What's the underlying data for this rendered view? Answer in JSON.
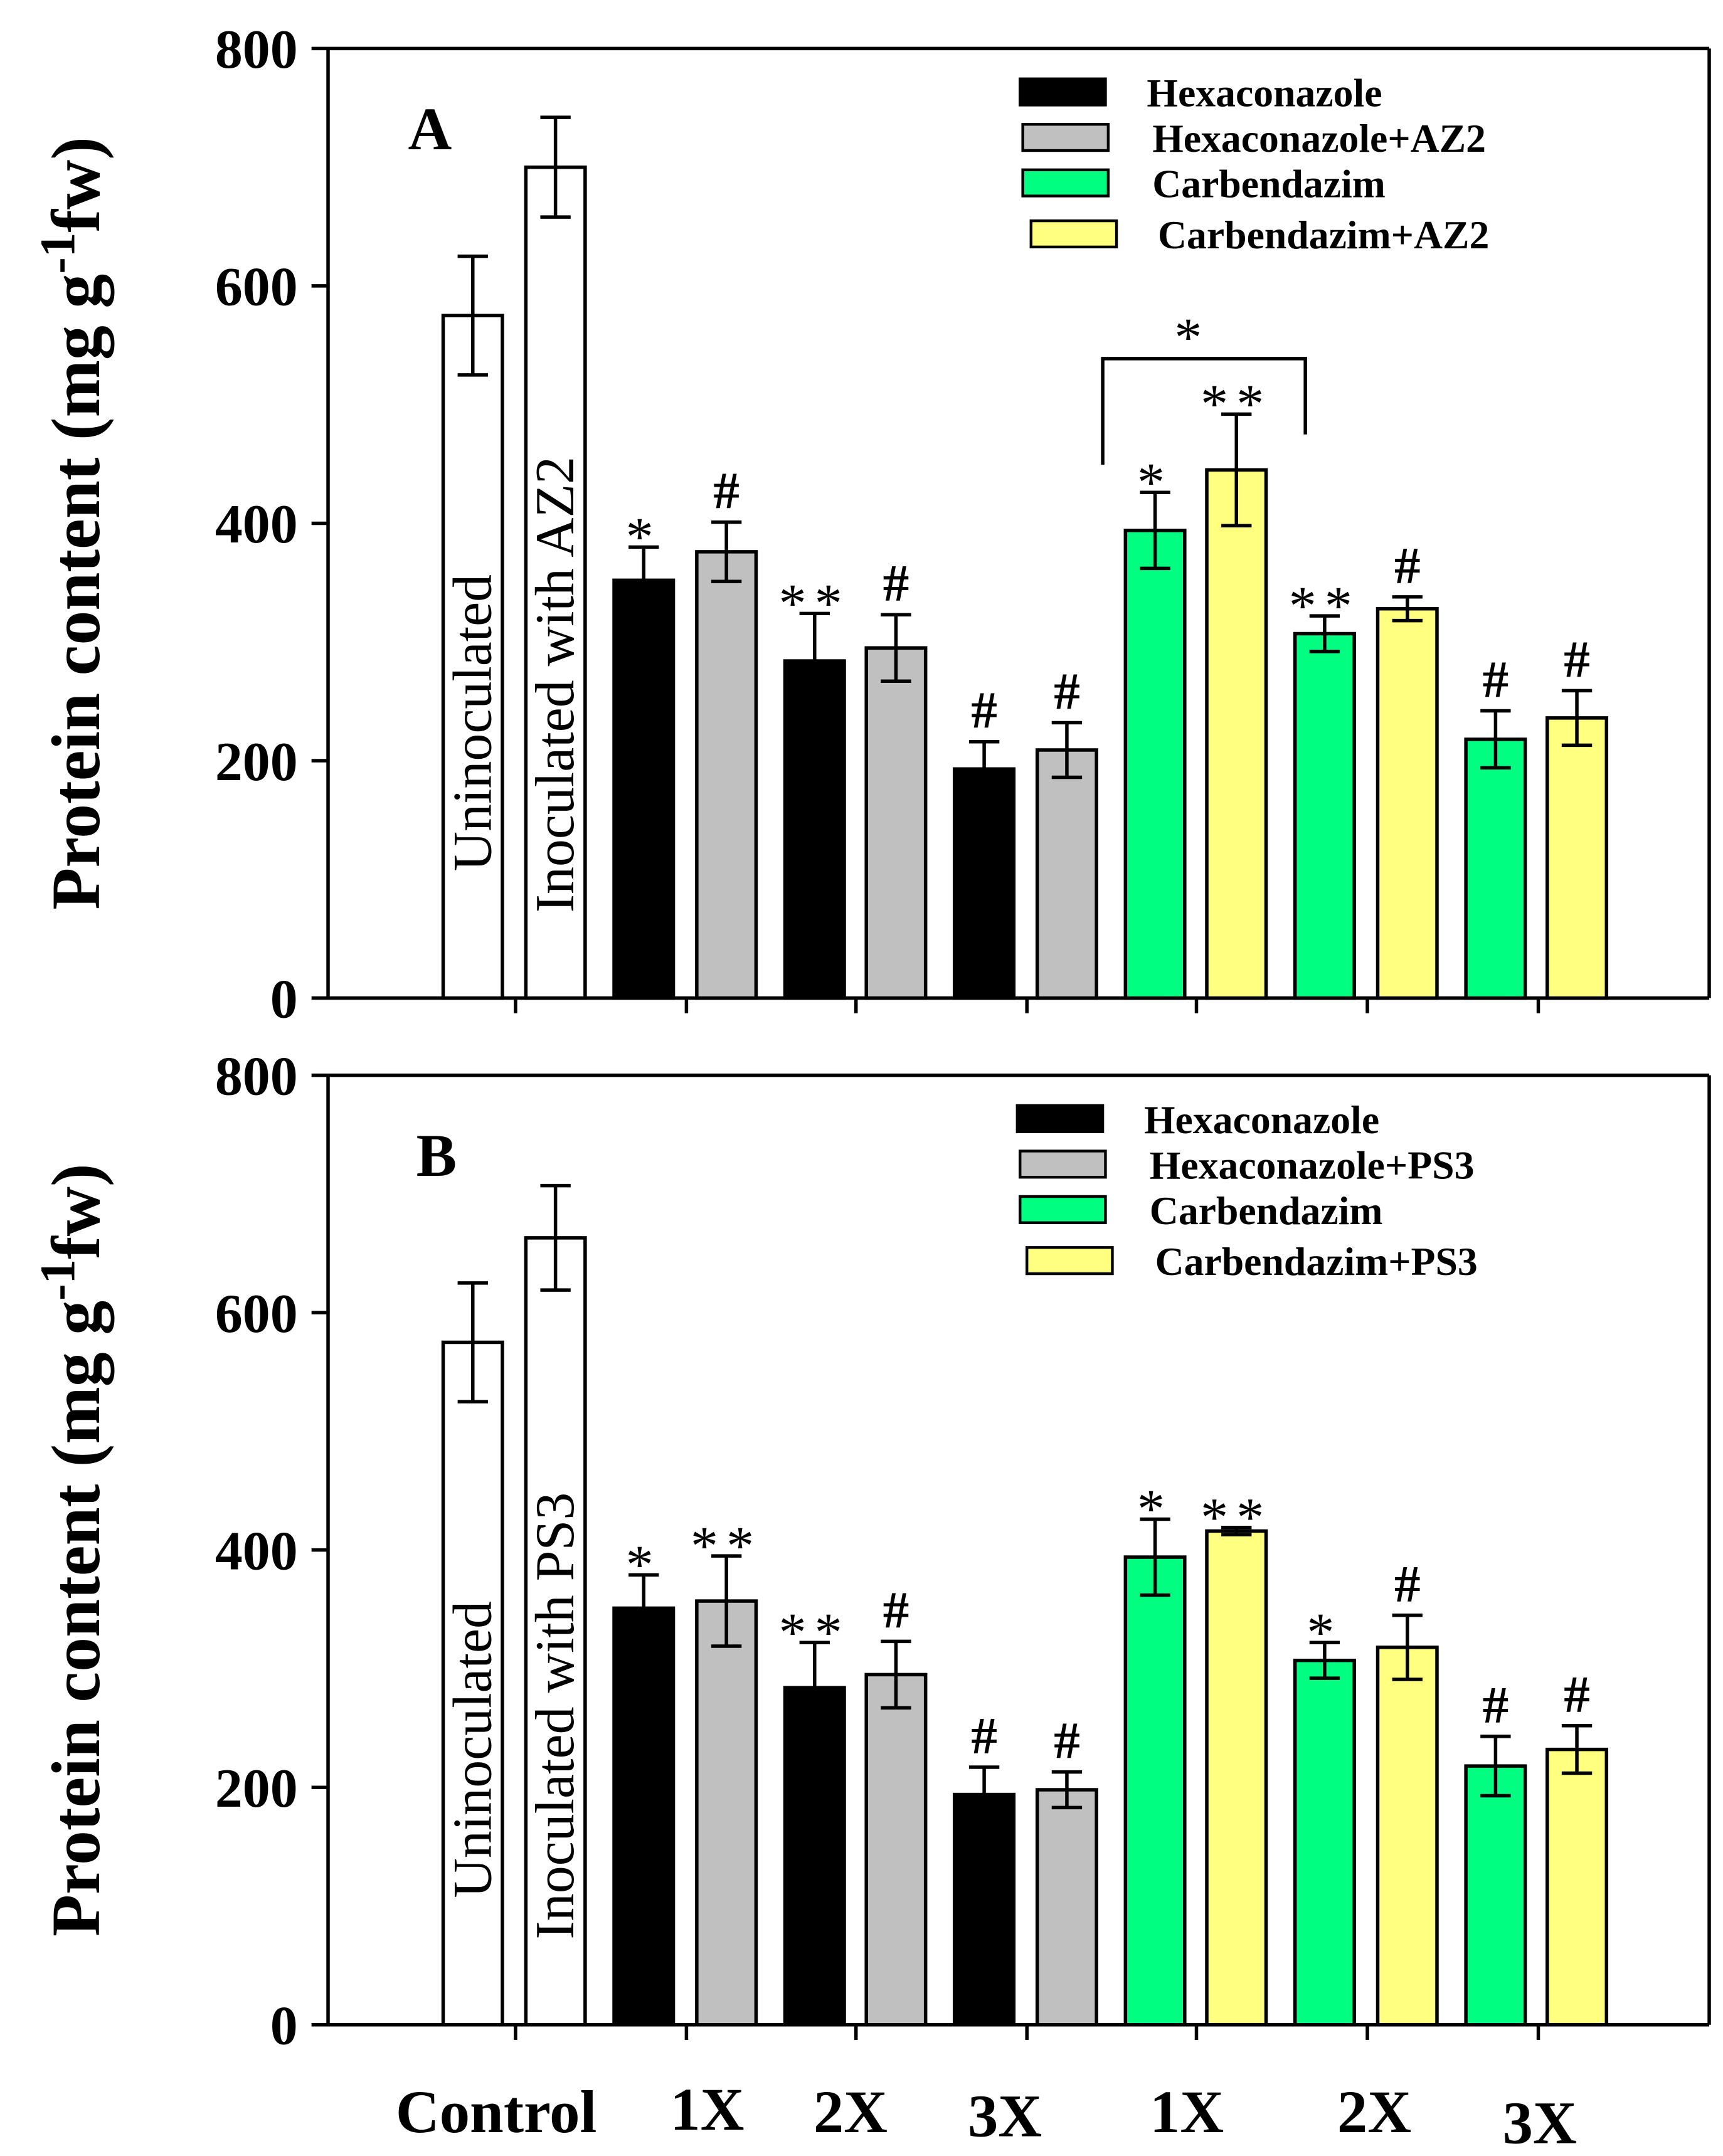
{
  "chart_data": [
    {
      "type": "bar",
      "panel_label": "A",
      "ylabel": "Protein content (mg g",
      "ylabel_sup": "-1",
      "ylabel_tail": "fw)",
      "ylim": [
        0,
        800
      ],
      "yticks": [
        "0",
        "200",
        "400",
        "600",
        "800"
      ],
      "control_labels": [
        "Uninoculated",
        "Inoculated with AZ2"
      ],
      "legend": [
        "Hexaconazole",
        "Hexaconazole+AZ2",
        "Carbendazim",
        "Carbendazim+AZ2"
      ],
      "legend_position": "top-right",
      "bracket_annotation": "*",
      "bars": [
        {
          "group": "Control",
          "series": "Uninoculated",
          "value": 575,
          "error": 50,
          "mark": ""
        },
        {
          "group": "Control",
          "series": "Inoculated with AZ2",
          "value": 700,
          "error": 42,
          "mark": ""
        },
        {
          "group": "1X",
          "series": "Hexaconazole",
          "value": 352,
          "error": 28,
          "mark": "*"
        },
        {
          "group": "1X",
          "series": "Hexaconazole+AZ2",
          "value": 376,
          "error": 25,
          "mark": "#"
        },
        {
          "group": "2X",
          "series": "Hexaconazole",
          "value": 284,
          "error": 40,
          "mark": "**"
        },
        {
          "group": "2X",
          "series": "Hexaconazole+AZ2",
          "value": 295,
          "error": 28,
          "mark": "#"
        },
        {
          "group": "3X",
          "series": "Hexaconazole",
          "value": 193,
          "error": 23,
          "mark": "#"
        },
        {
          "group": "3X",
          "series": "Hexaconazole+AZ2",
          "value": 209,
          "error": 23,
          "mark": "#"
        },
        {
          "group": "1X",
          "series": "Carbendazim",
          "value": 394,
          "error": 32,
          "mark": "*"
        },
        {
          "group": "1X",
          "series": "Carbendazim+AZ2",
          "value": 445,
          "error": 47,
          "mark": "**"
        },
        {
          "group": "2X",
          "series": "Carbendazim",
          "value": 307,
          "error": 15,
          "mark": "**"
        },
        {
          "group": "2X",
          "series": "Carbendazim+AZ2",
          "value": 328,
          "error": 10,
          "mark": "#"
        },
        {
          "group": "3X",
          "series": "Carbendazim",
          "value": 218,
          "error": 24,
          "mark": "#"
        },
        {
          "group": "3X",
          "series": "Carbendazim+AZ2",
          "value": 236,
          "error": 23,
          "mark": "#"
        }
      ]
    },
    {
      "type": "bar",
      "panel_label": "B",
      "ylabel": "Protein content (mg g",
      "ylabel_sup": "-1",
      "ylabel_tail": "fw)",
      "ylim": [
        0,
        800
      ],
      "yticks": [
        "0",
        "200",
        "400",
        "600",
        "800"
      ],
      "control_labels": [
        "Uninoculated",
        "Inoculated  with PS3"
      ],
      "legend": [
        "Hexaconazole",
        "Hexaconazole+PS3",
        "Carbendazim",
        "Carbendazim+PS3"
      ],
      "legend_position": "top-right",
      "bars": [
        {
          "group": "Control",
          "series": "Uninoculated",
          "value": 575,
          "error": 50,
          "mark": ""
        },
        {
          "group": "Control",
          "series": "Inoculated with PS3",
          "value": 663,
          "error": 44,
          "mark": ""
        },
        {
          "group": "1X",
          "series": "Hexaconazole",
          "value": 351,
          "error": 28,
          "mark": "*"
        },
        {
          "group": "1X",
          "series": "Hexaconazole+PS3",
          "value": 357,
          "error": 38,
          "mark": "**"
        },
        {
          "group": "2X",
          "series": "Hexaconazole",
          "value": 284,
          "error": 38,
          "mark": "**"
        },
        {
          "group": "2X",
          "series": "Hexaconazole+PS3",
          "value": 295,
          "error": 28,
          "mark": "#"
        },
        {
          "group": "3X",
          "series": "Hexaconazole",
          "value": 194,
          "error": 23,
          "mark": "#"
        },
        {
          "group": "3X",
          "series": "Hexaconazole+PS3",
          "value": 198,
          "error": 15,
          "mark": "#"
        },
        {
          "group": "1X",
          "series": "Carbendazim",
          "value": 394,
          "error": 32,
          "mark": "*"
        },
        {
          "group": "1X",
          "series": "Carbendazim+PS3",
          "value": 416,
          "error": 3,
          "mark": "**"
        },
        {
          "group": "2X",
          "series": "Carbendazim",
          "value": 307,
          "error": 15,
          "mark": "*"
        },
        {
          "group": "2X",
          "series": "Carbendazim+PS3",
          "value": 318,
          "error": 27,
          "mark": "#"
        },
        {
          "group": "3X",
          "series": "Carbendazim",
          "value": 218,
          "error": 25,
          "mark": "#"
        },
        {
          "group": "3X",
          "series": "Carbendazim+PS3",
          "value": 232,
          "error": 20,
          "mark": "#"
        }
      ]
    }
  ],
  "x_categories": [
    "Control",
    "1X",
    "2X",
    "3X",
    "1X",
    "2X",
    "3X"
  ],
  "colors": [
    "#ffffff",
    "#ffffff",
    "#000000",
    "#c0c0c0",
    "#000000",
    "#c0c0c0",
    "#000000",
    "#c0c0c0",
    "#00ff80",
    "#ffff80",
    "#00ff80",
    "#ffff80",
    "#00ff80",
    "#ffff80"
  ],
  "legend_colors": [
    "#000000",
    "#c0c0c0",
    "#00ff80",
    "#ffff80"
  ]
}
